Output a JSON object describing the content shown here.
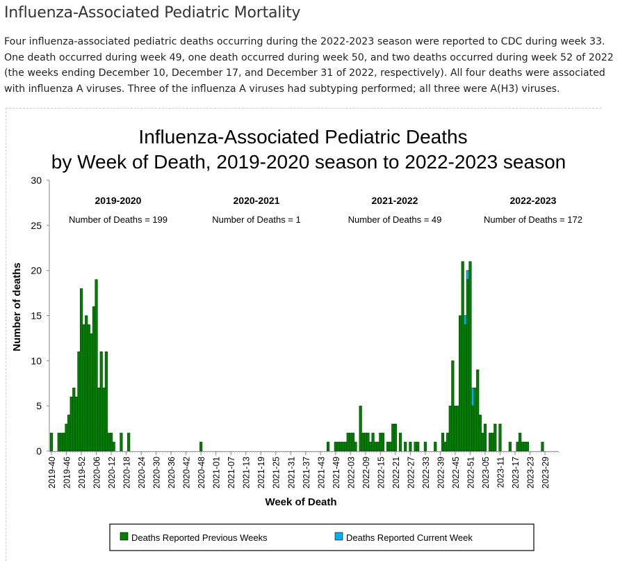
{
  "page": {
    "heading": "Influenza-Associated Pediatric Mortality",
    "description": "Four influenza-associated pediatric deaths occurring during the 2022-2023 season were reported to CDC during week 33. One death occurred during week 49, one death occurred during week 50, and two deaths occurred during week 52 of 2022 (the weeks ending December 10, December 17, and December 31 of 2022, respectively). All four deaths were associated with influenza A viruses. Three of the influenza A viruses had subtyping performed; all three were A(H3) viruses."
  },
  "chart_data": {
    "type": "bar",
    "stacked": true,
    "title_line1": "Influenza-Associated Pediatric Deaths",
    "title_line2": "by Week of Death, 2019-2020 season to 2022-2023 season",
    "xlabel": "Week of Death",
    "ylabel": "Number of deaths",
    "ylim": [
      0,
      30
    ],
    "yticks": [
      "0",
      "5",
      "10",
      "15",
      "20",
      "25",
      "30"
    ],
    "x_range": [
      "2019-40",
      "2023-35"
    ],
    "xtick_labels": [
      "2019-40",
      "2019-46",
      "2019-52",
      "2020-06",
      "2020-12",
      "2020-18",
      "2020-24",
      "2020-30",
      "2020-36",
      "2020-42",
      "2020-48",
      "2021-01",
      "2021-07",
      "2021-13",
      "2021-19",
      "2021-25",
      "2021-31",
      "2021-37",
      "2021-43",
      "2021-49",
      "2022-03",
      "2022-09",
      "2022-15",
      "2022-21",
      "2022-27",
      "2022-33",
      "2022-39",
      "2022-45",
      "2022-51",
      "2023-05",
      "2023-11",
      "2023-17",
      "2023-23",
      "2023-29"
    ],
    "seasons": [
      {
        "name": "2019-2020",
        "deaths_label": "Number of Deaths = 199"
      },
      {
        "name": "2020-2021",
        "deaths_label": "Number of Deaths = 1"
      },
      {
        "name": "2021-2022",
        "deaths_label": "Number of Deaths = 49"
      },
      {
        "name": "2022-2023",
        "deaths_label": "Number of Deaths = 172"
      }
    ],
    "series": [
      {
        "name": "Deaths Reported Previous Weeks",
        "color": "#008000"
      },
      {
        "name": "Deaths Reported Current Week",
        "color": "#00b0f0"
      }
    ],
    "data_note": "Each entry: [week, previous_weeks, current_week]; weeks not listed are 0.",
    "weeks": [
      [
        "2019-40",
        2,
        0
      ],
      [
        "2019-43",
        2,
        0
      ],
      [
        "2019-44",
        2,
        0
      ],
      [
        "2019-45",
        2,
        0
      ],
      [
        "2019-46",
        3,
        0
      ],
      [
        "2019-47",
        4,
        0
      ],
      [
        "2019-48",
        6,
        0
      ],
      [
        "2019-49",
        7,
        0
      ],
      [
        "2019-50",
        6,
        0
      ],
      [
        "2019-51",
        11,
        0
      ],
      [
        "2019-52",
        18,
        0
      ],
      [
        "2020-01",
        14,
        0
      ],
      [
        "2020-02",
        15,
        0
      ],
      [
        "2020-03",
        14,
        0
      ],
      [
        "2020-04",
        13,
        0
      ],
      [
        "2020-05",
        16,
        0
      ],
      [
        "2020-06",
        19,
        0
      ],
      [
        "2020-07",
        7,
        0
      ],
      [
        "2020-08",
        11,
        0
      ],
      [
        "2020-09",
        7,
        0
      ],
      [
        "2020-10",
        11,
        0
      ],
      [
        "2020-11",
        2,
        0
      ],
      [
        "2020-12",
        2,
        0
      ],
      [
        "2020-13",
        1,
        0
      ],
      [
        "2020-16",
        2,
        0
      ],
      [
        "2020-19",
        2,
        0
      ],
      [
        "2020-48",
        1,
        0
      ],
      [
        "2021-46",
        1,
        0
      ],
      [
        "2021-49",
        1,
        0
      ],
      [
        "2021-50",
        1,
        0
      ],
      [
        "2021-51",
        1,
        0
      ],
      [
        "2021-52",
        1,
        0
      ],
      [
        "2022-01",
        1,
        0
      ],
      [
        "2022-02",
        2,
        0
      ],
      [
        "2022-03",
        2,
        0
      ],
      [
        "2022-04",
        2,
        0
      ],
      [
        "2022-05",
        1,
        0
      ],
      [
        "2022-07",
        5,
        0
      ],
      [
        "2022-08",
        2,
        0
      ],
      [
        "2022-09",
        2,
        0
      ],
      [
        "2022-10",
        2,
        0
      ],
      [
        "2022-11",
        1,
        0
      ],
      [
        "2022-12",
        2,
        0
      ],
      [
        "2022-13",
        1,
        0
      ],
      [
        "2022-14",
        1,
        0
      ],
      [
        "2022-15",
        2,
        0
      ],
      [
        "2022-16",
        2,
        0
      ],
      [
        "2022-18",
        1,
        0
      ],
      [
        "2022-19",
        1,
        0
      ],
      [
        "2022-20",
        3,
        0
      ],
      [
        "2022-21",
        3,
        0
      ],
      [
        "2022-23",
        2,
        0
      ],
      [
        "2022-25",
        1,
        0
      ],
      [
        "2022-27",
        1,
        0
      ],
      [
        "2022-29",
        1,
        0
      ],
      [
        "2022-30",
        1,
        0
      ],
      [
        "2022-33",
        1,
        0
      ],
      [
        "2022-37",
        1,
        0
      ],
      [
        "2022-40",
        2,
        0
      ],
      [
        "2022-41",
        1,
        0
      ],
      [
        "2022-42",
        2,
        0
      ],
      [
        "2022-43",
        5,
        0
      ],
      [
        "2022-44",
        10,
        0
      ],
      [
        "2022-45",
        5,
        0
      ],
      [
        "2022-46",
        5,
        0
      ],
      [
        "2022-47",
        15,
        0
      ],
      [
        "2022-48",
        21,
        0
      ],
      [
        "2022-49",
        14,
        1
      ],
      [
        "2022-50",
        19,
        1
      ],
      [
        "2022-51",
        21,
        0
      ],
      [
        "2022-52",
        5,
        2
      ],
      [
        "2023-01",
        7,
        0
      ],
      [
        "2023-02",
        9,
        0
      ],
      [
        "2023-03",
        4,
        0
      ],
      [
        "2023-04",
        2,
        0
      ],
      [
        "2023-05",
        3,
        0
      ],
      [
        "2023-07",
        2,
        0
      ],
      [
        "2023-08",
        2,
        0
      ],
      [
        "2023-09",
        3,
        0
      ],
      [
        "2023-11",
        3,
        0
      ],
      [
        "2023-15",
        1,
        0
      ],
      [
        "2023-18",
        1,
        0
      ],
      [
        "2023-19",
        2,
        0
      ],
      [
        "2023-20",
        1,
        0
      ],
      [
        "2023-21",
        1,
        0
      ],
      [
        "2023-22",
        1,
        0
      ],
      [
        "2023-28",
        1,
        0
      ]
    ]
  }
}
